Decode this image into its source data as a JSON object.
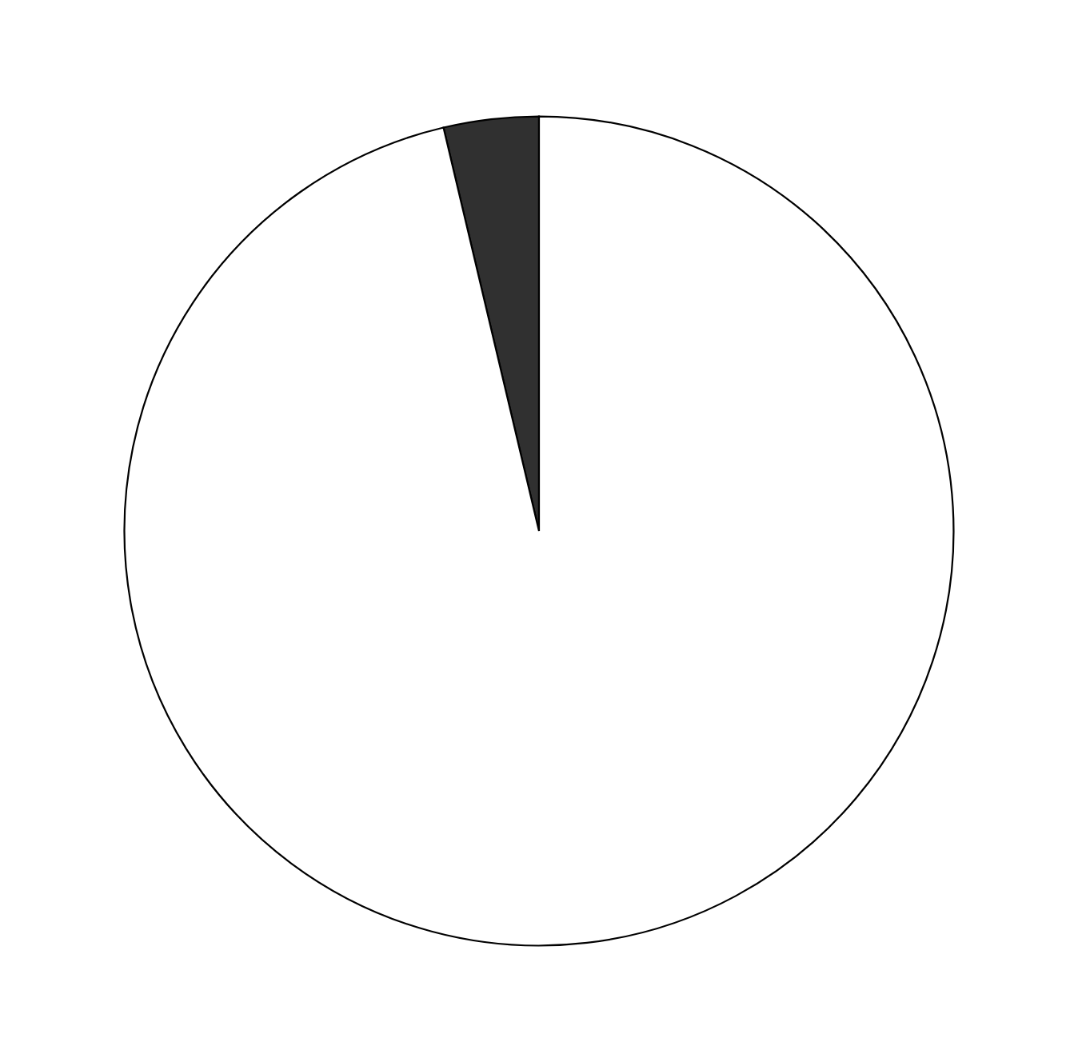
{
  "chart_data": {
    "type": "pie",
    "categories": [
      null,
      null
    ],
    "values": [
      3.7,
      96.3
    ],
    "colors": [
      "#303030",
      "#ffffff"
    ]
  }
}
